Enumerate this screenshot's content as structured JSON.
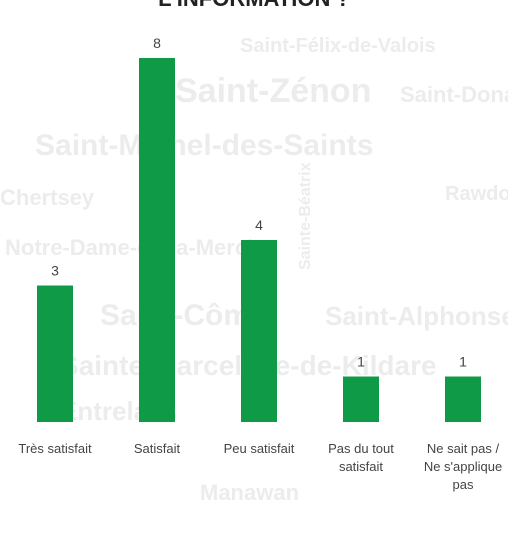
{
  "chart_data": {
    "type": "bar",
    "title": "L'INFORMATION ?",
    "categories": [
      "Très satisfait",
      "Satisfait",
      "Peu satisfait",
      "Pas du tout satisfait",
      "Ne sait pas / Ne s'applique pas"
    ],
    "values": [
      3,
      8,
      4,
      1,
      1
    ],
    "color": "#0f9a48",
    "ylim": [
      0,
      8
    ],
    "background_texts": [
      "Saint-Félix-de-Valois",
      "Saint-Zénon",
      "Saint-Donat",
      "Saint-Michel-des-Saints",
      "Chertsey",
      "Rawdon",
      "Notre-Dame-de-la-Merci",
      "Sainte-Béatrix",
      "Saint-Côme",
      "Saint-Alphonse",
      "Sainte-Marcelline-de-Kildare",
      "Entrelacs",
      "Manawan"
    ]
  }
}
